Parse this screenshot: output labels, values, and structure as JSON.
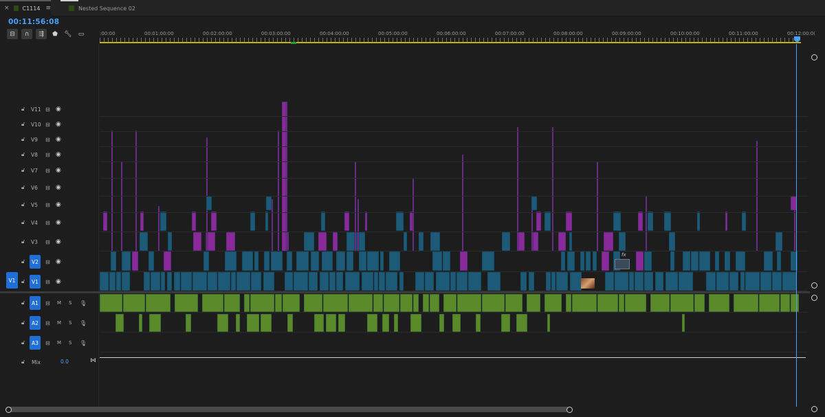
{
  "tabs": [
    {
      "label": "C1114",
      "active": true
    },
    {
      "label": "Nested Sequence 02",
      "active": false
    }
  ],
  "timecode": "00:11:56:08",
  "ruler": {
    "labels": [
      ":00:00",
      "00:01:00:00",
      "00:02:00:00",
      "00:03:00:00",
      "00:04:00:00",
      "00:05:00:00",
      "00:06:00:00",
      "00:07:00:00",
      "00:08:00:00",
      "00:09:00:00",
      "00:10:00:00",
      "00:11:00:00",
      "00:12:00:0("
    ]
  },
  "video_tracks": [
    {
      "name": "V11"
    },
    {
      "name": "V10"
    },
    {
      "name": "V9"
    },
    {
      "name": "V8"
    },
    {
      "name": "V7"
    },
    {
      "name": "V6"
    },
    {
      "name": "V5"
    },
    {
      "name": "V4"
    },
    {
      "name": "V3"
    },
    {
      "name": "V2"
    },
    {
      "name": "V1"
    }
  ],
  "audio_tracks": [
    {
      "name": "A1",
      "m": "M",
      "s": "S"
    },
    {
      "name": "A2",
      "m": "M",
      "s": "S"
    },
    {
      "name": "A3",
      "m": "M",
      "s": "S"
    }
  ],
  "source_patch": "V1",
  "mix": {
    "label": "Mix",
    "value": "0.0"
  },
  "fx_badge": "fx",
  "colors": {
    "playhead": "#4aa0ff",
    "video_clip": "#1c5a78",
    "video_clip_alt": "#8a2a9a",
    "audio_clip": "#5a8a2a",
    "track_selected": "#1f6fd6",
    "work_area": "#c8b400"
  },
  "icons": [
    "close-icon",
    "menu-icon",
    "nest-icon",
    "snap-icon",
    "linked-selection-icon",
    "marker-icon",
    "wrench-icon",
    "captions-icon",
    "lock-icon",
    "filmstrip-icon",
    "eye-icon",
    "mic-icon"
  ]
}
